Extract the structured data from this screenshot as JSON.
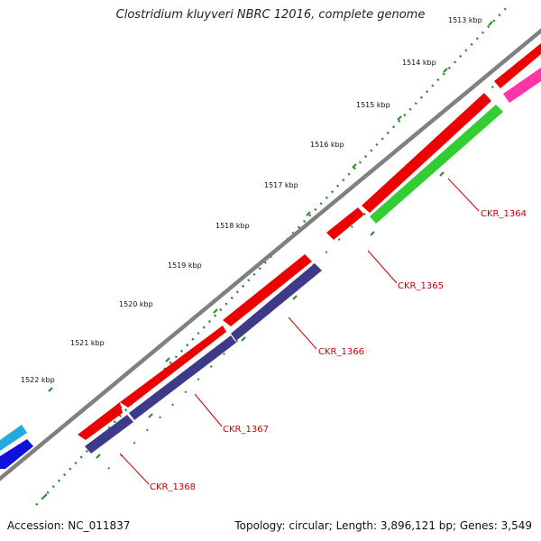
{
  "title": "Clostridium kluyveri NBRC 12016, complete genome",
  "footer": {
    "accession": "Accession: NC_011837",
    "stats": "Topology: circular; Length: 3,896,121 bp; Genes: 3,549"
  },
  "kbp_labels": [
    "1513 kbp",
    "1514 kbp",
    "1515 kbp",
    "1516 kbp",
    "1517 kbp",
    "1518 kbp",
    "1519 kbp",
    "1520 kbp",
    "1521 kbp",
    "1522 kbp"
  ],
  "gene_labels": [
    "CKR_1364",
    "CKR_1365",
    "CKR_1366",
    "CKR_1367",
    "CKR_1368"
  ],
  "colors": {
    "backbone": "#808080",
    "tick": "#2a8a2a",
    "red_gene": "#ee0000",
    "green_gene": "#33cc33",
    "purple_gene": "#3d3a8a",
    "pink_gene": "#ff33aa",
    "blue_gene": "#1010dd",
    "cyan_gene": "#22aadd",
    "label": "#cc0000"
  }
}
